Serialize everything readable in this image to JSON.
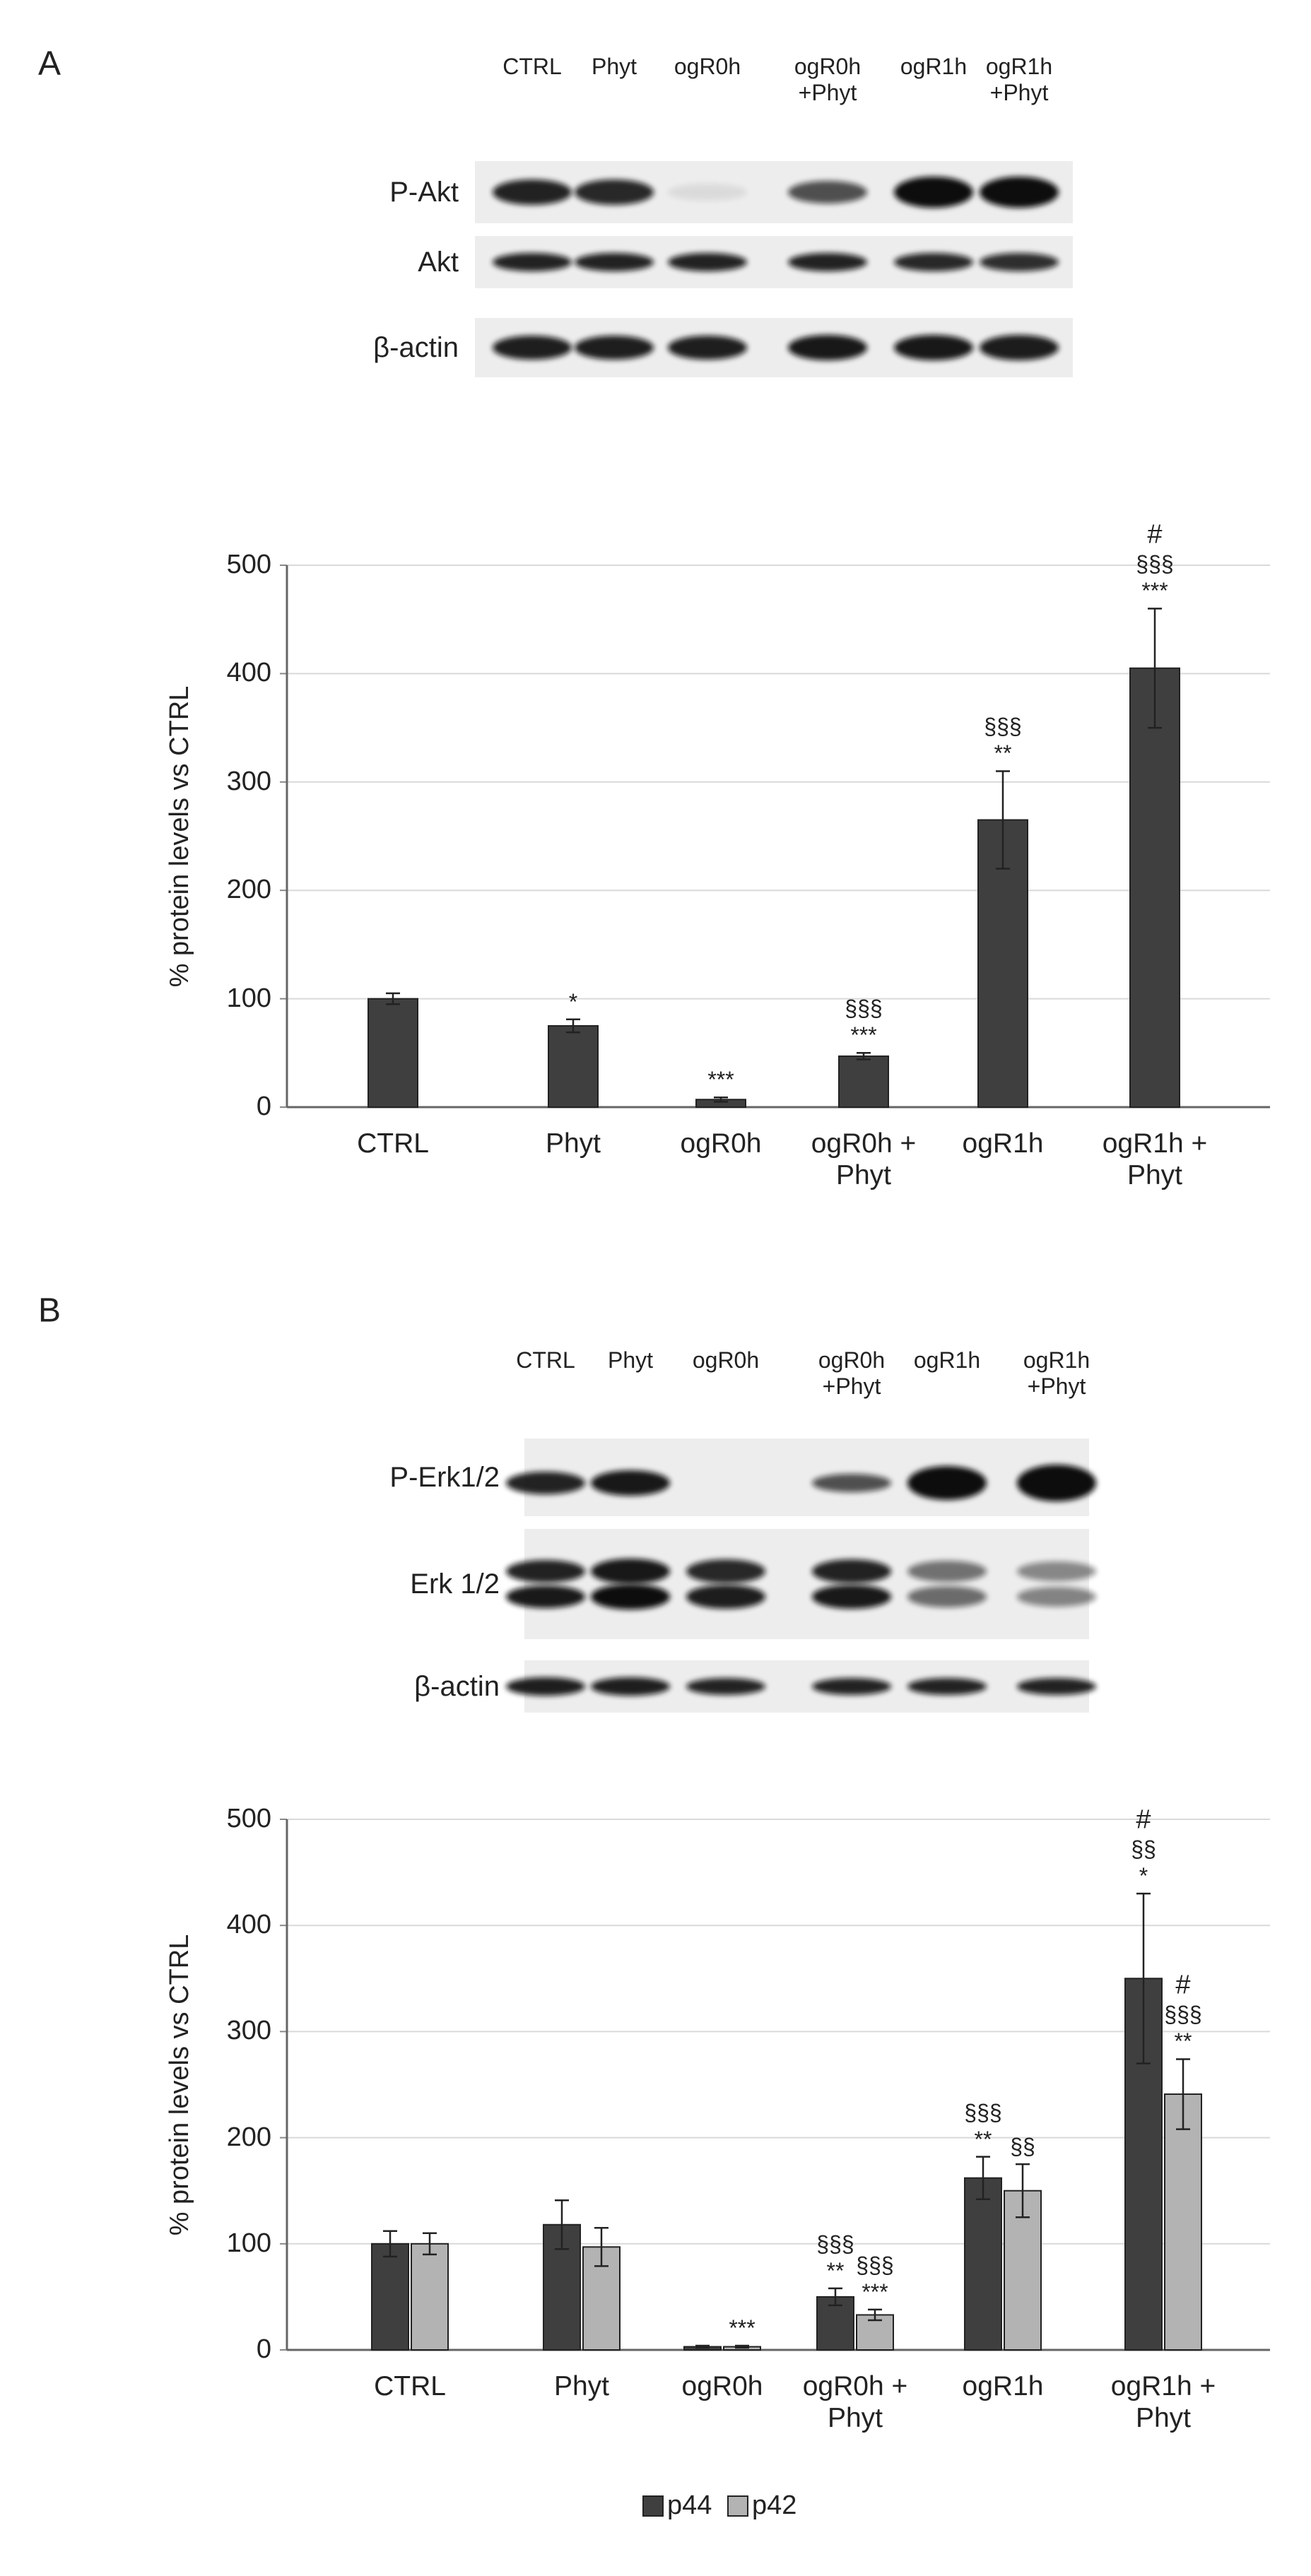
{
  "panels": [
    {
      "label": "A",
      "blot": {
        "lanes": [
          "CTRL",
          "Phyt",
          "ogR0h",
          "ogR0h\n+Phyt",
          "ogR1h",
          "ogR1h\n+Phyt"
        ],
        "rows": [
          "P-Akt",
          "Akt",
          "β-actin"
        ]
      }
    },
    {
      "label": "B",
      "blot": {
        "lanes": [
          "CTRL",
          "Phyt",
          "ogR0h",
          "ogR0h\n+Phyt",
          "ogR1h",
          "ogR1h\n+Phyt"
        ],
        "rows": [
          "P-Erk1/2",
          "Erk 1/2",
          "β-actin"
        ]
      }
    }
  ],
  "chart_data": [
    {
      "type": "bar",
      "ylabel": "% protein levels vs CTRL",
      "categories": [
        "CTRL",
        "Phyt",
        "ogR0h",
        "ogR0h +\nPhyt",
        "ogR1h",
        "ogR1h +\nPhyt"
      ],
      "series": [
        {
          "color": "#3f3f3f",
          "values": [
            100,
            75,
            7,
            47,
            265,
            405
          ],
          "errors": [
            5,
            6,
            2,
            3,
            45,
            55
          ],
          "annotations": [
            [],
            [
              "*"
            ],
            [
              "***"
            ],
            [
              "§§§",
              "***"
            ],
            [
              "§§§",
              "**"
            ],
            [
              "#",
              "§§§",
              "***"
            ]
          ]
        }
      ],
      "ylim": [
        0,
        500
      ],
      "yticks": [
        0,
        100,
        200,
        300,
        400,
        500
      ],
      "grid": true
    },
    {
      "type": "bar",
      "ylabel": "% protein levels vs CTRL",
      "categories": [
        "CTRL",
        "Phyt",
        "ogR0h",
        "ogR0h +\nPhyt",
        "ogR1h",
        "ogR1h +\nPhyt"
      ],
      "series": [
        {
          "name": "p44",
          "color": "#3f3f3f",
          "values": [
            100,
            118,
            3,
            50,
            162,
            350
          ],
          "errors": [
            12,
            23,
            1,
            8,
            20,
            80
          ],
          "annotations": [
            [],
            [],
            [],
            [
              "§§§",
              "**"
            ],
            [
              "§§§",
              "**"
            ],
            [
              "#",
              "§§",
              "*"
            ]
          ]
        },
        {
          "name": "p42",
          "color": "#b3b3b3",
          "values": [
            100,
            97,
            3,
            33,
            150,
            241
          ],
          "errors": [
            10,
            18,
            1,
            5,
            25,
            33
          ],
          "annotations": [
            [],
            [],
            [
              "***"
            ],
            [
              "§§§",
              "***"
            ],
            [
              "§§"
            ],
            [
              "#",
              "§§§",
              "**"
            ]
          ]
        }
      ],
      "ylim": [
        0,
        500
      ],
      "yticks": [
        0,
        100,
        200,
        300,
        400,
        500
      ],
      "grid": true,
      "legend": "bottom"
    }
  ]
}
